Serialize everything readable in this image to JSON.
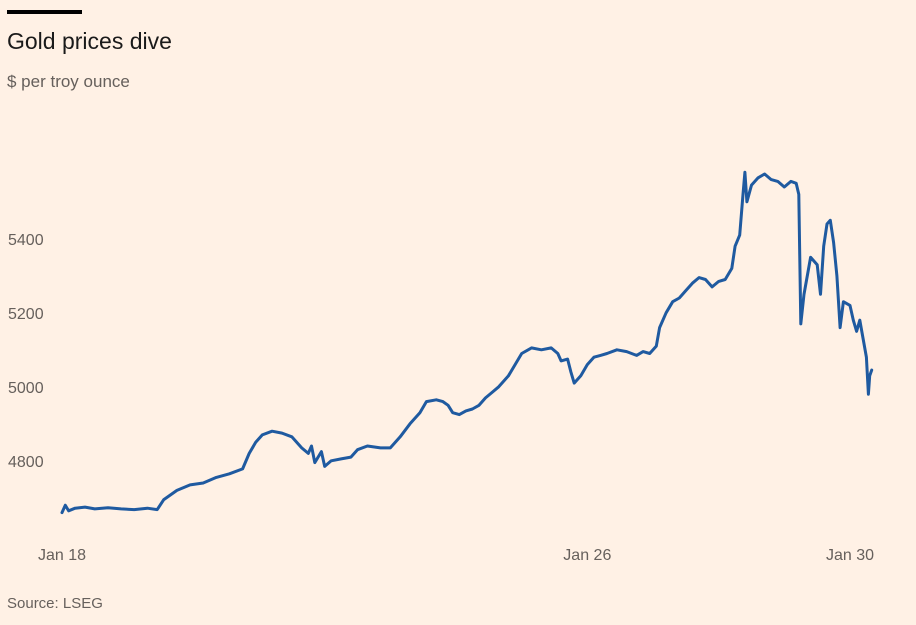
{
  "header": {
    "title": "Gold prices dive",
    "subtitle": "$ per troy ounce"
  },
  "footer": {
    "source": "Source: LSEG"
  },
  "colors": {
    "background": "#fff1e5",
    "line": "#1f5aa0",
    "text": "#66605c"
  },
  "chart_data": {
    "type": "line",
    "title": "Gold prices dive",
    "subtitle": "$ per troy ounce",
    "xlabel": "",
    "ylabel": "$ per troy ounce",
    "x_ticks": [
      {
        "label": "Jan 18",
        "day": 0
      },
      {
        "label": "Jan 26",
        "day": 8
      },
      {
        "label": "Jan 30",
        "day": 12
      }
    ],
    "y_ticks": [
      4800,
      5000,
      5200,
      5400
    ],
    "ylim": [
      4640,
      5640
    ],
    "xlim": [
      0,
      12
    ],
    "grid": false,
    "series": [
      {
        "name": "Gold",
        "points": [
          [
            0.0,
            4660
          ],
          [
            0.05,
            4680
          ],
          [
            0.1,
            4665
          ],
          [
            0.2,
            4672
          ],
          [
            0.35,
            4675
          ],
          [
            0.5,
            4670
          ],
          [
            0.7,
            4673
          ],
          [
            0.9,
            4670
          ],
          [
            1.1,
            4668
          ],
          [
            1.3,
            4672
          ],
          [
            1.45,
            4668
          ],
          [
            1.55,
            4695
          ],
          [
            1.75,
            4720
          ],
          [
            1.95,
            4735
          ],
          [
            2.15,
            4740
          ],
          [
            2.35,
            4755
          ],
          [
            2.55,
            4765
          ],
          [
            2.75,
            4778
          ],
          [
            2.85,
            4820
          ],
          [
            2.95,
            4850
          ],
          [
            3.05,
            4870
          ],
          [
            3.2,
            4880
          ],
          [
            3.35,
            4875
          ],
          [
            3.5,
            4865
          ],
          [
            3.65,
            4835
          ],
          [
            3.75,
            4820
          ],
          [
            3.8,
            4840
          ],
          [
            3.85,
            4795
          ],
          [
            3.95,
            4825
          ],
          [
            4.0,
            4785
          ],
          [
            4.1,
            4800
          ],
          [
            4.25,
            4805
          ],
          [
            4.4,
            4810
          ],
          [
            4.5,
            4830
          ],
          [
            4.65,
            4840
          ],
          [
            4.85,
            4835
          ],
          [
            5.0,
            4835
          ],
          [
            5.15,
            4865
          ],
          [
            5.3,
            4900
          ],
          [
            5.45,
            4930
          ],
          [
            5.55,
            4960
          ],
          [
            5.7,
            4965
          ],
          [
            5.8,
            4960
          ],
          [
            5.88,
            4950
          ],
          [
            5.95,
            4930
          ],
          [
            6.05,
            4925
          ],
          [
            6.15,
            4935
          ],
          [
            6.25,
            4940
          ],
          [
            6.35,
            4950
          ],
          [
            6.45,
            4970
          ],
          [
            6.55,
            4985
          ],
          [
            6.65,
            5000
          ],
          [
            6.8,
            5030
          ],
          [
            6.9,
            5060
          ],
          [
            7.0,
            5090
          ],
          [
            7.15,
            5105
          ],
          [
            7.3,
            5100
          ],
          [
            7.45,
            5105
          ],
          [
            7.55,
            5090
          ],
          [
            7.6,
            5070
          ],
          [
            7.7,
            5075
          ],
          [
            7.75,
            5040
          ],
          [
            7.8,
            5010
          ],
          [
            7.9,
            5030
          ],
          [
            8.0,
            5060
          ],
          [
            8.1,
            5080
          ],
          [
            8.2,
            5085
          ],
          [
            8.3,
            5090
          ],
          [
            8.45,
            5100
          ],
          [
            8.6,
            5095
          ],
          [
            8.75,
            5085
          ],
          [
            8.85,
            5095
          ],
          [
            8.95,
            5090
          ],
          [
            9.05,
            5110
          ],
          [
            9.1,
            5160
          ],
          [
            9.2,
            5200
          ],
          [
            9.3,
            5230
          ],
          [
            9.4,
            5240
          ],
          [
            9.5,
            5260
          ],
          [
            9.6,
            5280
          ],
          [
            9.7,
            5295
          ],
          [
            9.8,
            5290
          ],
          [
            9.9,
            5270
          ],
          [
            10.0,
            5285
          ],
          [
            10.1,
            5290
          ],
          [
            10.2,
            5320
          ],
          [
            10.25,
            5380
          ],
          [
            10.32,
            5410
          ],
          [
            10.37,
            5520
          ],
          [
            10.4,
            5580
          ],
          [
            10.43,
            5500
          ],
          [
            10.5,
            5545
          ],
          [
            10.6,
            5565
          ],
          [
            10.7,
            5575
          ],
          [
            10.8,
            5560
          ],
          [
            10.9,
            5555
          ],
          [
            11.0,
            5540
          ],
          [
            11.1,
            5555
          ],
          [
            11.18,
            5550
          ],
          [
            11.22,
            5520
          ],
          [
            11.25,
            5170
          ],
          [
            11.3,
            5250
          ],
          [
            11.4,
            5350
          ],
          [
            11.5,
            5330
          ],
          [
            11.55,
            5250
          ],
          [
            11.6,
            5380
          ],
          [
            11.65,
            5440
          ],
          [
            11.7,
            5450
          ],
          [
            11.75,
            5390
          ],
          [
            11.8,
            5300
          ],
          [
            11.85,
            5160
          ],
          [
            11.9,
            5230
          ],
          [
            12.0,
            5220
          ],
          [
            12.05,
            5180
          ],
          [
            12.1,
            5150
          ],
          [
            12.15,
            5180
          ],
          [
            12.2,
            5130
          ],
          [
            12.25,
            5080
          ],
          [
            12.28,
            4980
          ],
          [
            12.3,
            5030
          ],
          [
            12.33,
            5045
          ]
        ]
      }
    ]
  }
}
